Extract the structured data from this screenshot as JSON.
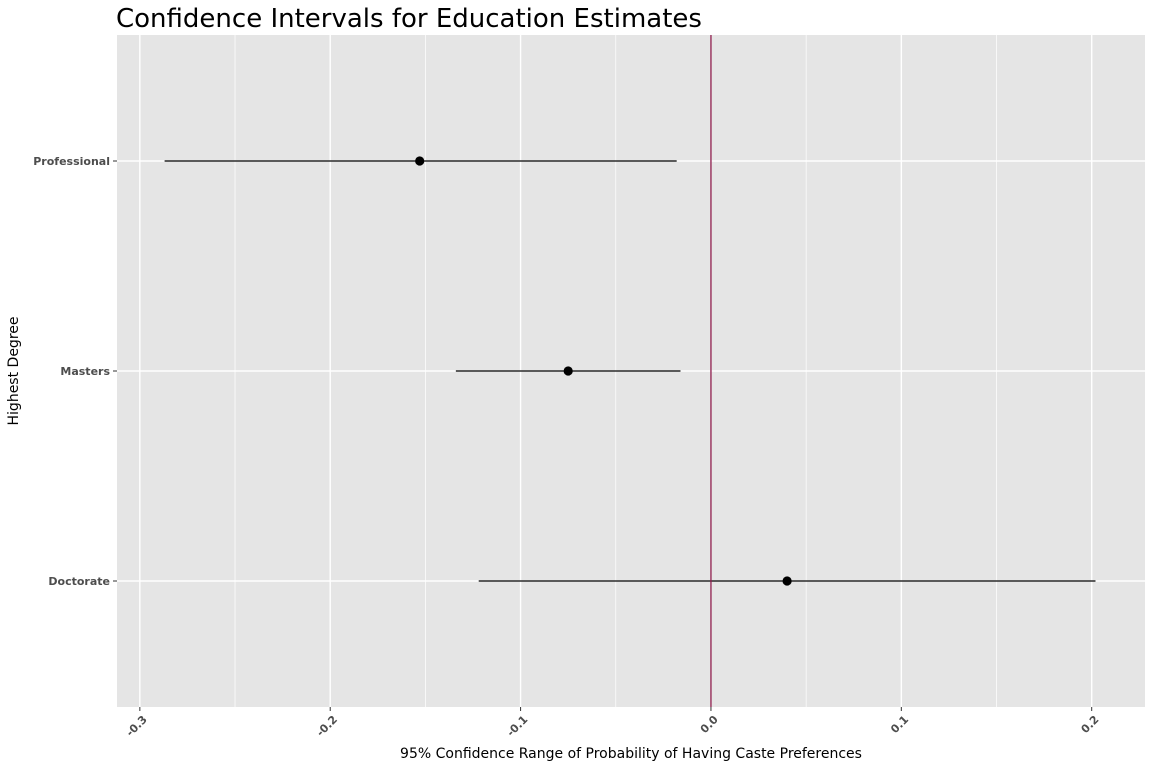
{
  "chart_data": {
    "type": "errorbar",
    "title": "Confidence Intervals for Education Estimates",
    "xlabel": "95% Confidence Range of Probability of Having Caste Preferences",
    "ylabel": "Highest Degree",
    "xlim": [
      -0.312,
      0.228
    ],
    "x_ticks": [
      -0.3,
      -0.2,
      -0.1,
      0.0,
      0.1,
      0.2
    ],
    "x_tick_labels": [
      "-0.3",
      "-0.2",
      "-0.1",
      "0.0",
      "0.1",
      "0.2"
    ],
    "x_minor_ticks": [
      -0.25,
      -0.15,
      -0.05,
      0.05,
      0.15
    ],
    "reference_line": {
      "x": 0.0,
      "color": "#8b1a4a"
    },
    "categories": [
      "Professional",
      "Masters",
      "Doctorate"
    ],
    "estimates": [
      {
        "label": "Professional",
        "estimate": -0.153,
        "lower": -0.287,
        "upper": -0.018
      },
      {
        "label": "Masters",
        "estimate": -0.075,
        "lower": -0.134,
        "upper": -0.016
      },
      {
        "label": "Doctorate",
        "estimate": 0.04,
        "lower": -0.122,
        "upper": 0.202
      }
    ],
    "panel_background": "#e5e5e5",
    "grid": true,
    "legend": "none"
  }
}
